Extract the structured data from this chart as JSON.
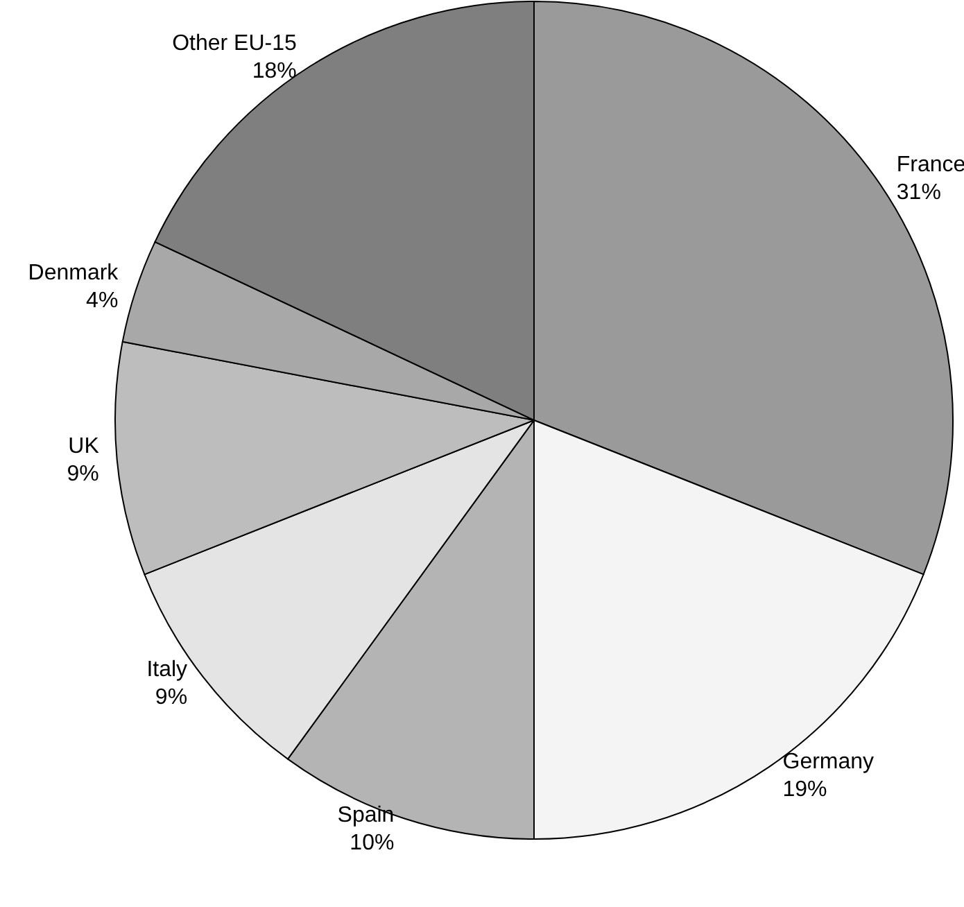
{
  "chart_data": {
    "type": "pie",
    "categories": [
      "France",
      "Germany",
      "Spain",
      "Italy",
      "UK",
      "Denmark",
      "Other EU-15"
    ],
    "values": [
      31,
      19,
      10,
      9,
      9,
      4,
      18
    ],
    "value_labels": [
      "31%",
      "19%",
      "10%",
      "9%",
      "9%",
      "4%",
      "18%"
    ],
    "colors": [
      "#9a9a9a",
      "#f4f4f4",
      "#b4b4b4",
      "#e4e4e4",
      "#bdbdbd",
      "#a8a8a8",
      "#7f7f7f"
    ],
    "legend": false
  }
}
